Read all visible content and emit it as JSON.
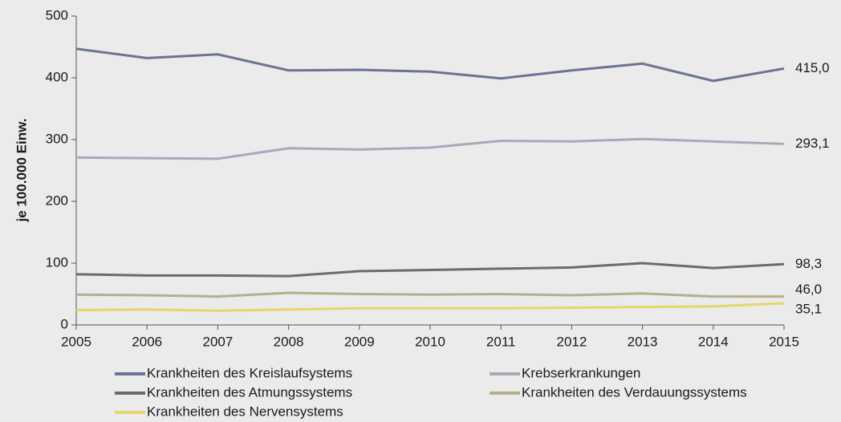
{
  "chart_data": {
    "type": "line",
    "y_label": "je 100.000 Einw.",
    "x": [
      2005,
      2006,
      2007,
      2008,
      2009,
      2010,
      2011,
      2012,
      2013,
      2014,
      2015
    ],
    "xlim": [
      2005,
      2015
    ],
    "xticks": [
      2005,
      2006,
      2007,
      2008,
      2009,
      2010,
      2011,
      2012,
      2013,
      2014,
      2015
    ],
    "ylim": [
      0,
      500
    ],
    "yticks": [
      0,
      100,
      200,
      300,
      400,
      500
    ],
    "grid": false,
    "legend": "bottom",
    "series": [
      {
        "name": "Krankheiten des Kreislaufsystems",
        "color": "#6b7394",
        "values": [
          447,
          432,
          438,
          412,
          413,
          410,
          399,
          412,
          423,
          395,
          415.0
        ],
        "value_labels": [
          null,
          null,
          null,
          null,
          null,
          null,
          null,
          null,
          null,
          null,
          "415,0"
        ]
      },
      {
        "name": "Krebserkrankungen",
        "color": "#a6aab8",
        "values": [
          271,
          270,
          269,
          286,
          284,
          287,
          298,
          297,
          301,
          297,
          293.1
        ],
        "value_labels": [
          null,
          null,
          null,
          null,
          null,
          null,
          null,
          null,
          null,
          null,
          "293,1"
        ]
      },
      {
        "name": "Krankheiten des Atmungssystems",
        "color": "#6b6b6b",
        "values": [
          82,
          80,
          80,
          79,
          87,
          89,
          91,
          93,
          100,
          92,
          98.3
        ],
        "value_labels": [
          null,
          null,
          null,
          null,
          null,
          null,
          null,
          null,
          null,
          null,
          "98,3"
        ]
      },
      {
        "name": "Krankheiten des Verdauungssystems",
        "color": "#b5ae8e",
        "values": [
          49,
          48,
          46,
          52,
          50,
          49,
          50,
          48,
          51,
          46,
          46.0
        ],
        "value_labels": [
          null,
          null,
          null,
          null,
          null,
          null,
          null,
          null,
          null,
          null,
          "46,0"
        ]
      },
      {
        "name": "Krankheiten des Nervensystems",
        "color": "#e6d66a",
        "values": [
          24,
          25,
          23,
          25,
          27,
          27,
          27,
          28,
          29,
          30,
          35.1
        ],
        "value_labels": [
          null,
          null,
          null,
          null,
          null,
          null,
          null,
          null,
          null,
          null,
          "35,1"
        ]
      }
    ]
  }
}
